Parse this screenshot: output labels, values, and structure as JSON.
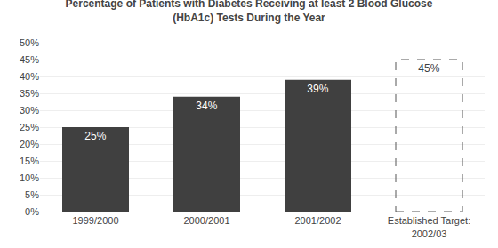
{
  "chart_data": {
    "type": "bar",
    "title": "Percentage of Patients with Diabetes Receiving at least 2 Blood Glucose\n(HbA1c) Tests During the Year",
    "categories": [
      "1999/2000",
      "2000/2001",
      "2001/2002",
      "Established Target:\n2002/03"
    ],
    "series": [
      {
        "color": "#404040",
        "values": [
          25,
          34,
          39,
          null
        ],
        "value_labels": [
          "25%",
          "34%",
          "39%",
          null
        ]
      },
      {
        "color": "#555555",
        "line_style": "dashed",
        "values": [
          null,
          null,
          null,
          45
        ],
        "value_labels": [
          null,
          null,
          null,
          "45%"
        ]
      }
    ],
    "data_labels": true,
    "ylim": [
      0,
      50
    ],
    "yticks": [
      {
        "value": 0,
        "label": "0%"
      },
      {
        "value": 5,
        "label": "5%"
      },
      {
        "value": 10,
        "label": "10%"
      },
      {
        "value": 15,
        "label": "15%"
      },
      {
        "value": 20,
        "label": "20%"
      },
      {
        "value": 25,
        "label": "25%"
      },
      {
        "value": 30,
        "label": "30%"
      },
      {
        "value": 35,
        "label": "35%"
      },
      {
        "value": 40,
        "label": "40%"
      },
      {
        "value": 45,
        "label": "45%"
      },
      {
        "value": 50,
        "label": "50%"
      }
    ],
    "grid": true
  }
}
